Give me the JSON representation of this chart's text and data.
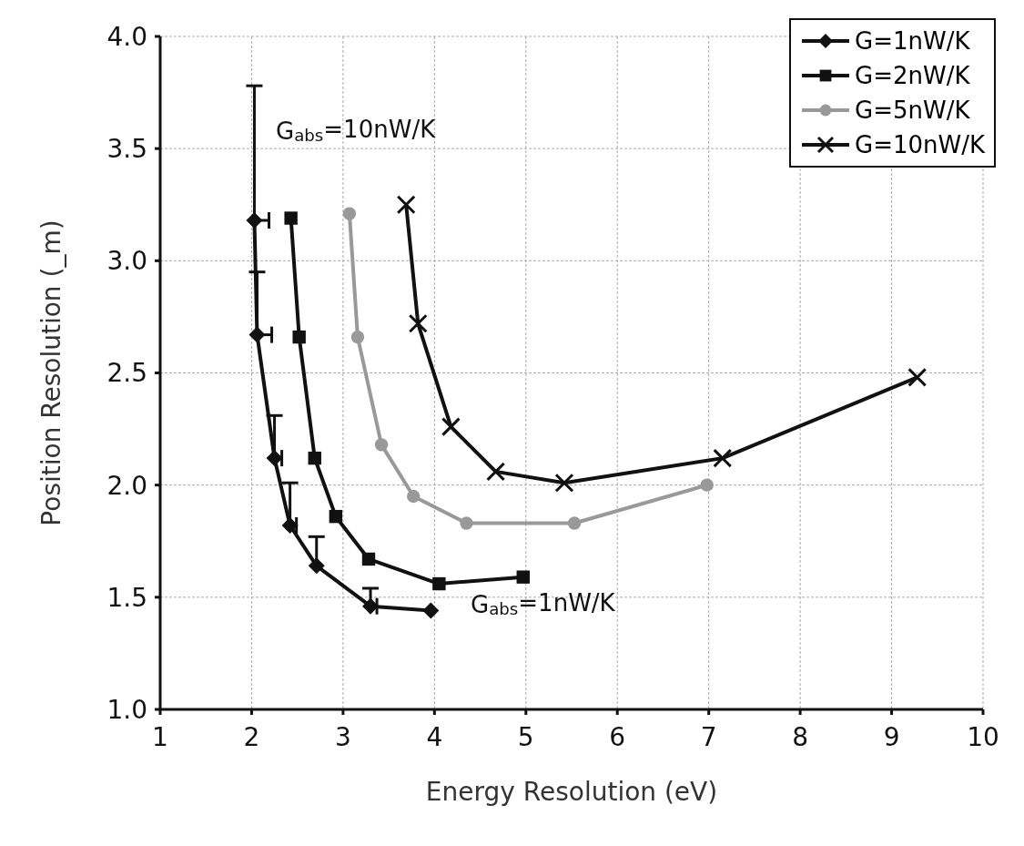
{
  "chart_data": {
    "type": "line",
    "xlabel": "Energy Resolution (eV)",
    "ylabel": "Position Resolution (_m)",
    "xlim": [
      1,
      10
    ],
    "xticks": [
      1,
      2,
      3,
      4,
      5,
      6,
      7,
      8,
      9,
      10
    ],
    "ylim": [
      1,
      4
    ],
    "yticks": [
      {
        "value": 1,
        "label": "1.0"
      },
      1.5,
      {
        "value": 2,
        "label": "2.0"
      },
      2.5,
      {
        "value": 3,
        "label": "3.0"
      },
      3.5,
      {
        "value": 4,
        "label": "4.0"
      }
    ],
    "grid": true,
    "legend": "top right",
    "series": [
      {
        "name": "G=1nW/K",
        "color": "#111111",
        "marker": "diamond",
        "x": [
          2.03,
          2.06,
          2.25,
          2.42,
          2.71,
          3.3,
          3.96
        ],
        "values": [
          3.18,
          2.67,
          2.12,
          1.82,
          1.64,
          1.46,
          1.44
        ],
        "errors": [
          [
            3.18,
            3.78
          ],
          [
            2.67,
            2.95
          ],
          [
            2.12,
            2.31
          ],
          [
            1.82,
            2.01
          ],
          [
            1.64,
            1.77
          ],
          [
            1.46,
            1.54
          ],
          null
        ],
        "xerrors": [
          [
            2.03,
            2.19
          ],
          [
            2.06,
            2.22
          ],
          [
            2.25,
            2.33
          ],
          [
            2.42,
            2.49
          ],
          null,
          [
            3.3,
            3.37
          ],
          null
        ]
      },
      {
        "name": "G=2nW/K",
        "color": "#111111",
        "marker": "square",
        "x": [
          2.43,
          2.52,
          2.69,
          2.92,
          3.28,
          4.05,
          4.97
        ],
        "values": [
          3.19,
          2.66,
          2.12,
          1.86,
          1.67,
          1.56,
          1.59
        ]
      },
      {
        "name": "G=5nW/K",
        "color": "#999999",
        "marker": "circle",
        "x": [
          3.07,
          3.16,
          3.42,
          3.77,
          4.35,
          5.53,
          6.98
        ],
        "values": [
          3.21,
          2.66,
          2.18,
          1.95,
          1.83,
          1.83,
          2.0
        ]
      },
      {
        "name": "G=10nW/K",
        "color": "#111111",
        "marker": "cross",
        "x": [
          3.69,
          3.82,
          4.18,
          4.67,
          5.42,
          7.15,
          9.28
        ],
        "values": [
          3.25,
          2.72,
          2.26,
          2.06,
          2.01,
          2.12,
          2.48
        ]
      }
    ],
    "annotations": [
      "G$_{abs}$=10nW/K",
      "G$_{abs}$=1nW/K"
    ]
  }
}
